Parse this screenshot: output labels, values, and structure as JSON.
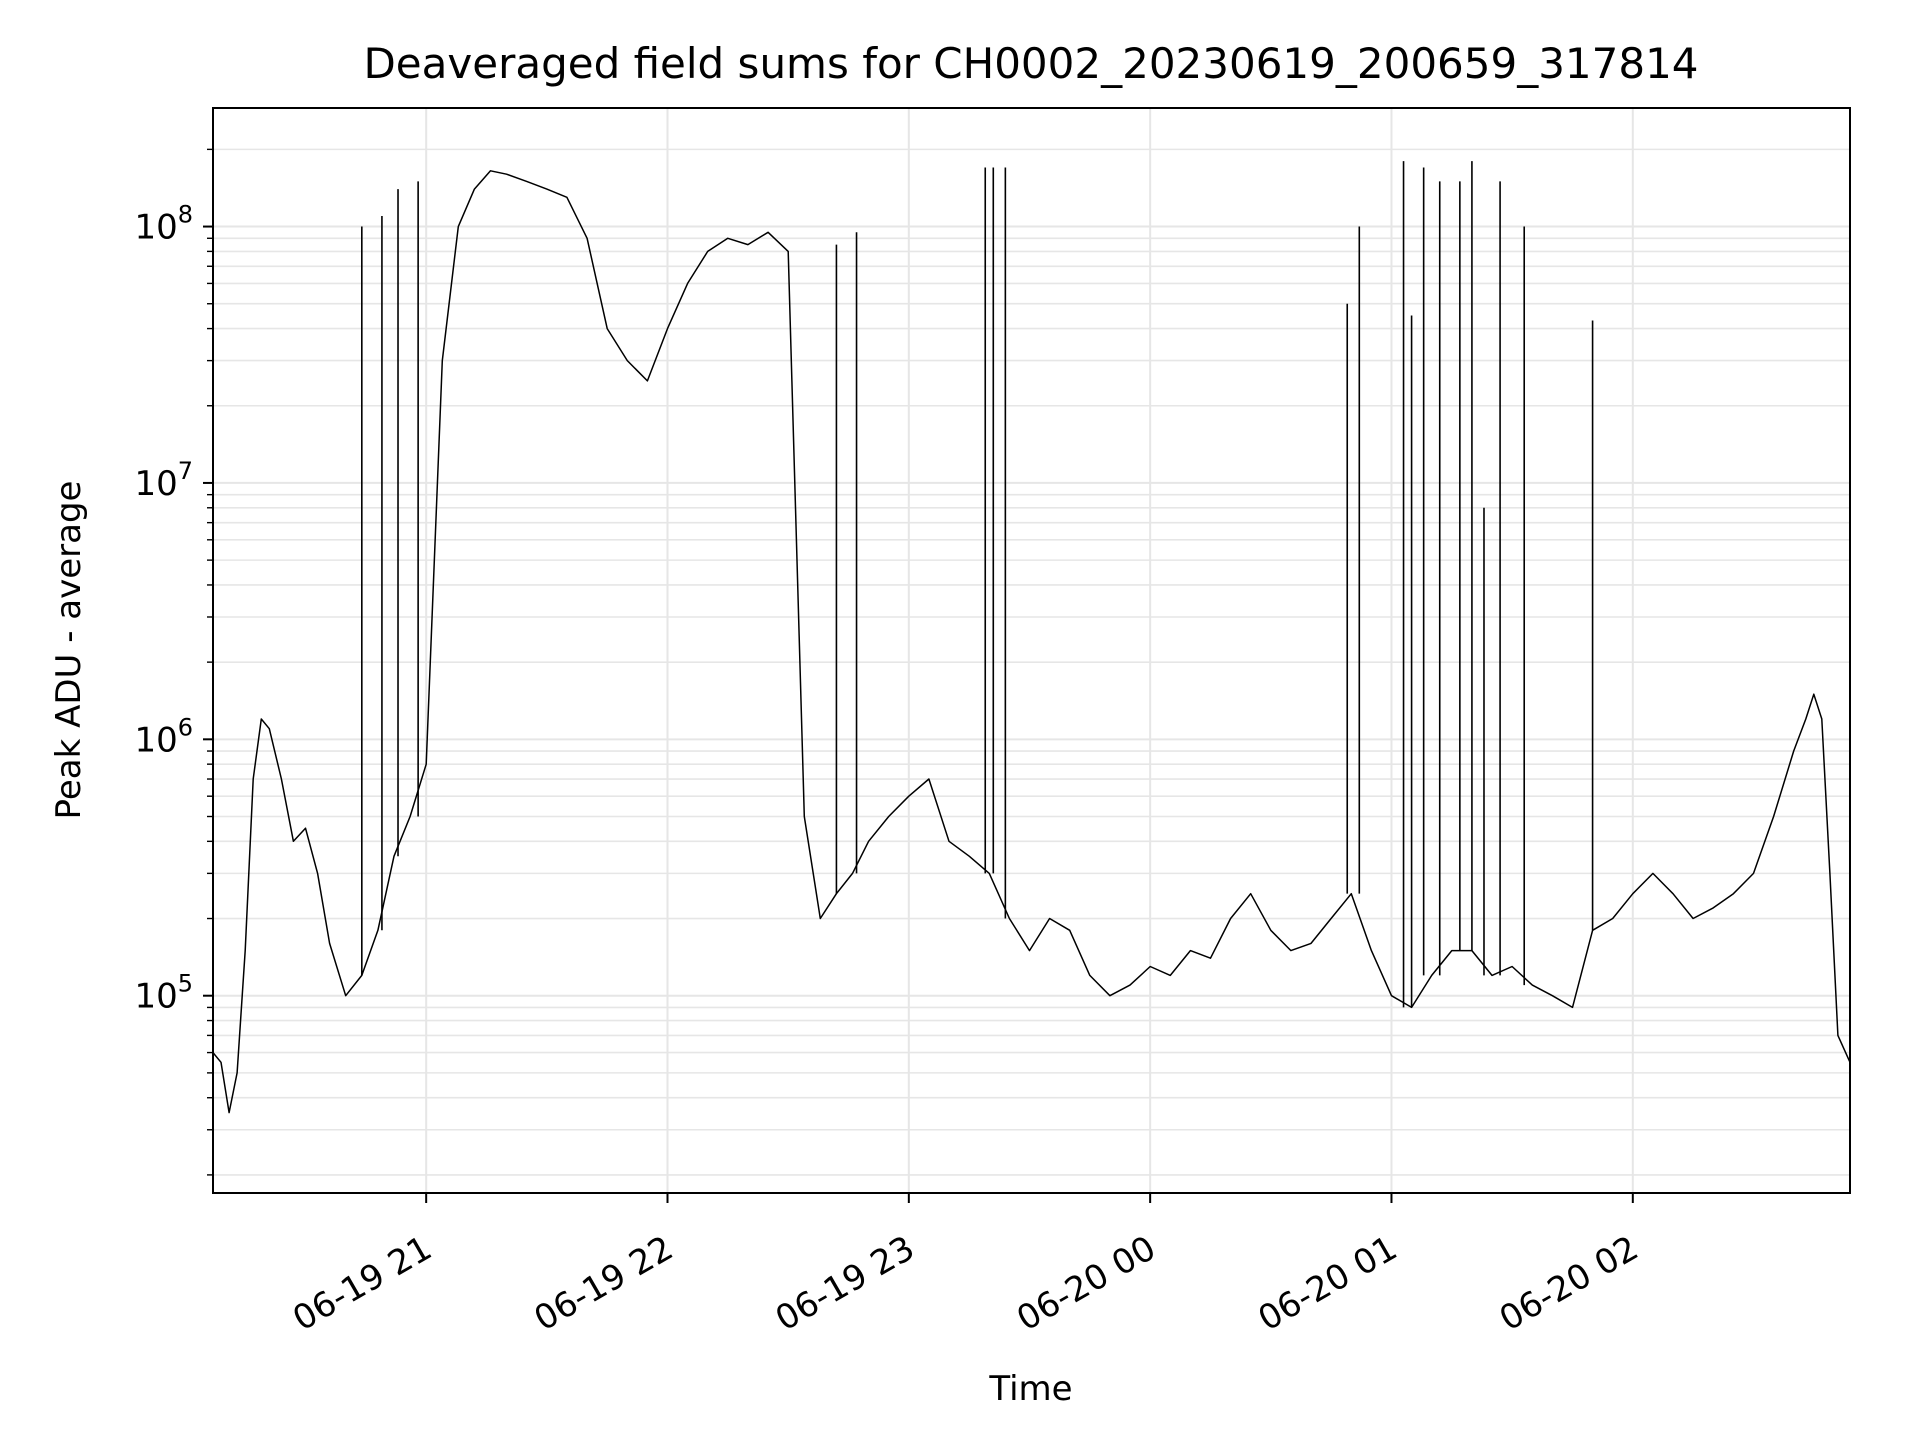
{
  "chart_data": {
    "type": "line",
    "title": "Deaveraged field sums for CH0002_20230619_200659_317814",
    "xlabel": "Time",
    "ylabel": "Peak ADU - average",
    "yscale": "log",
    "ylim": [
      17000,
      290000000
    ],
    "xlim": [
      "2023-06-19 20:07",
      "2023-06-20 02:54"
    ],
    "grid": true,
    "line_color": "#000000",
    "x_ticks": [
      {
        "time": "2023-06-19 21:00",
        "label": "06-19 21"
      },
      {
        "time": "2023-06-19 22:00",
        "label": "06-19 22"
      },
      {
        "time": "2023-06-19 23:00",
        "label": "06-19 23"
      },
      {
        "time": "2023-06-20 00:00",
        "label": "06-20 00"
      },
      {
        "time": "2023-06-20 01:00",
        "label": "06-20 01"
      },
      {
        "time": "2023-06-20 02:00",
        "label": "06-20 02"
      }
    ],
    "y_ticks": [
      {
        "value": 100000,
        "base": "10",
        "exp": "5"
      },
      {
        "value": 1000000,
        "base": "10",
        "exp": "6"
      },
      {
        "value": 10000000,
        "base": "10",
        "exp": "7"
      },
      {
        "value": 100000000,
        "base": "10",
        "exp": "8"
      }
    ],
    "series": [
      {
        "x": [
          "2023-06-19 20:07",
          "2023-06-19 20:09",
          "2023-06-19 20:11",
          "2023-06-19 20:13",
          "2023-06-19 20:15",
          "2023-06-19 20:17",
          "2023-06-19 20:19",
          "2023-06-19 20:21",
          "2023-06-19 20:24",
          "2023-06-19 20:27",
          "2023-06-19 20:30",
          "2023-06-19 20:33",
          "2023-06-19 20:36",
          "2023-06-19 20:40",
          "2023-06-19 20:44",
          "2023-06-19 20:48",
          "2023-06-19 20:52",
          "2023-06-19 20:56",
          "2023-06-19 21:00",
          "2023-06-19 21:04",
          "2023-06-19 21:08",
          "2023-06-19 21:12",
          "2023-06-19 21:16",
          "2023-06-19 21:20",
          "2023-06-19 21:25",
          "2023-06-19 21:30",
          "2023-06-19 21:35",
          "2023-06-19 21:40",
          "2023-06-19 21:45",
          "2023-06-19 21:50",
          "2023-06-19 21:55",
          "2023-06-19 22:00",
          "2023-06-19 22:05",
          "2023-06-19 22:10",
          "2023-06-19 22:15",
          "2023-06-19 22:20",
          "2023-06-19 22:25",
          "2023-06-19 22:30",
          "2023-06-19 22:34",
          "2023-06-19 22:38",
          "2023-06-19 22:42",
          "2023-06-19 22:46",
          "2023-06-19 22:50",
          "2023-06-19 22:55",
          "2023-06-19 23:00",
          "2023-06-19 23:05",
          "2023-06-19 23:10",
          "2023-06-19 23:15",
          "2023-06-19 23:20",
          "2023-06-19 23:25",
          "2023-06-19 23:30",
          "2023-06-19 23:35",
          "2023-06-19 23:40",
          "2023-06-19 23:45",
          "2023-06-19 23:50",
          "2023-06-19 23:55",
          "2023-06-20 00:00",
          "2023-06-20 00:05",
          "2023-06-20 00:10",
          "2023-06-20 00:15",
          "2023-06-20 00:20",
          "2023-06-20 00:25",
          "2023-06-20 00:30",
          "2023-06-20 00:35",
          "2023-06-20 00:40",
          "2023-06-20 00:45",
          "2023-06-20 00:50",
          "2023-06-20 00:55",
          "2023-06-20 01:00",
          "2023-06-20 01:05",
          "2023-06-20 01:10",
          "2023-06-20 01:15",
          "2023-06-20 01:20",
          "2023-06-20 01:25",
          "2023-06-20 01:30",
          "2023-06-20 01:35",
          "2023-06-20 01:40",
          "2023-06-20 01:45",
          "2023-06-20 01:50",
          "2023-06-20 01:55",
          "2023-06-20 02:00",
          "2023-06-20 02:05",
          "2023-06-20 02:10",
          "2023-06-20 02:15",
          "2023-06-20 02:20",
          "2023-06-20 02:25",
          "2023-06-20 02:30",
          "2023-06-20 02:35",
          "2023-06-20 02:40",
          "2023-06-20 02:43",
          "2023-06-20 02:45",
          "2023-06-20 02:47",
          "2023-06-20 02:49",
          "2023-06-20 02:51",
          "2023-06-20 02:54"
        ],
        "y": [
          60000,
          55000,
          35000,
          50000,
          150000,
          700000,
          1200000,
          1100000,
          700000,
          400000,
          450000,
          300000,
          160000,
          100000,
          120000,
          180000,
          350000,
          500000,
          800000,
          30000000,
          100000000,
          140000000,
          165000000,
          160000000,
          150000000,
          140000000,
          130000000,
          90000000,
          40000000,
          30000000,
          25000000,
          40000000,
          60000000,
          80000000,
          90000000,
          85000000,
          95000000,
          80000000,
          500000,
          200000,
          250000,
          300000,
          400000,
          500000,
          600000,
          700000,
          400000,
          350000,
          300000,
          200000,
          150000,
          200000,
          180000,
          120000,
          100000,
          110000,
          130000,
          120000,
          150000,
          140000,
          200000,
          250000,
          180000,
          150000,
          160000,
          200000,
          250000,
          150000,
          100000,
          90000,
          120000,
          150000,
          150000,
          120000,
          130000,
          110000,
          100000,
          90000,
          180000,
          200000,
          250000,
          300000,
          250000,
          200000,
          220000,
          250000,
          300000,
          500000,
          900000,
          1200000,
          1500000,
          1200000,
          300000,
          70000,
          55000
        ]
      }
    ],
    "spikes": [
      {
        "time": "2023-06-19 20:44",
        "value": 100000000
      },
      {
        "time": "2023-06-19 20:49",
        "value": 110000000
      },
      {
        "time": "2023-06-19 20:53",
        "value": 140000000
      },
      {
        "time": "2023-06-19 20:58",
        "value": 150000000
      },
      {
        "time": "2023-06-19 22:42",
        "value": 85000000
      },
      {
        "time": "2023-06-19 22:47",
        "value": 95000000
      },
      {
        "time": "2023-06-19 23:19",
        "value": 170000000
      },
      {
        "time": "2023-06-19 23:21",
        "value": 170000000
      },
      {
        "time": "2023-06-19 23:24",
        "value": 170000000
      },
      {
        "time": "2023-06-20 00:49",
        "value": 50000000
      },
      {
        "time": "2023-06-20 00:52",
        "value": 100000000
      },
      {
        "time": "2023-06-20 01:03",
        "value": 180000000
      },
      {
        "time": "2023-06-20 01:05",
        "value": 45000000
      },
      {
        "time": "2023-06-20 01:08",
        "value": 170000000
      },
      {
        "time": "2023-06-20 01:12",
        "value": 150000000
      },
      {
        "time": "2023-06-20 01:17",
        "value": 150000000
      },
      {
        "time": "2023-06-20 01:20",
        "value": 180000000
      },
      {
        "time": "2023-06-20 01:23",
        "value": 8000000
      },
      {
        "time": "2023-06-20 01:27",
        "value": 150000000
      },
      {
        "time": "2023-06-20 01:33",
        "value": 100000000
      },
      {
        "time": "2023-06-20 01:50",
        "value": 43000000
      }
    ]
  }
}
